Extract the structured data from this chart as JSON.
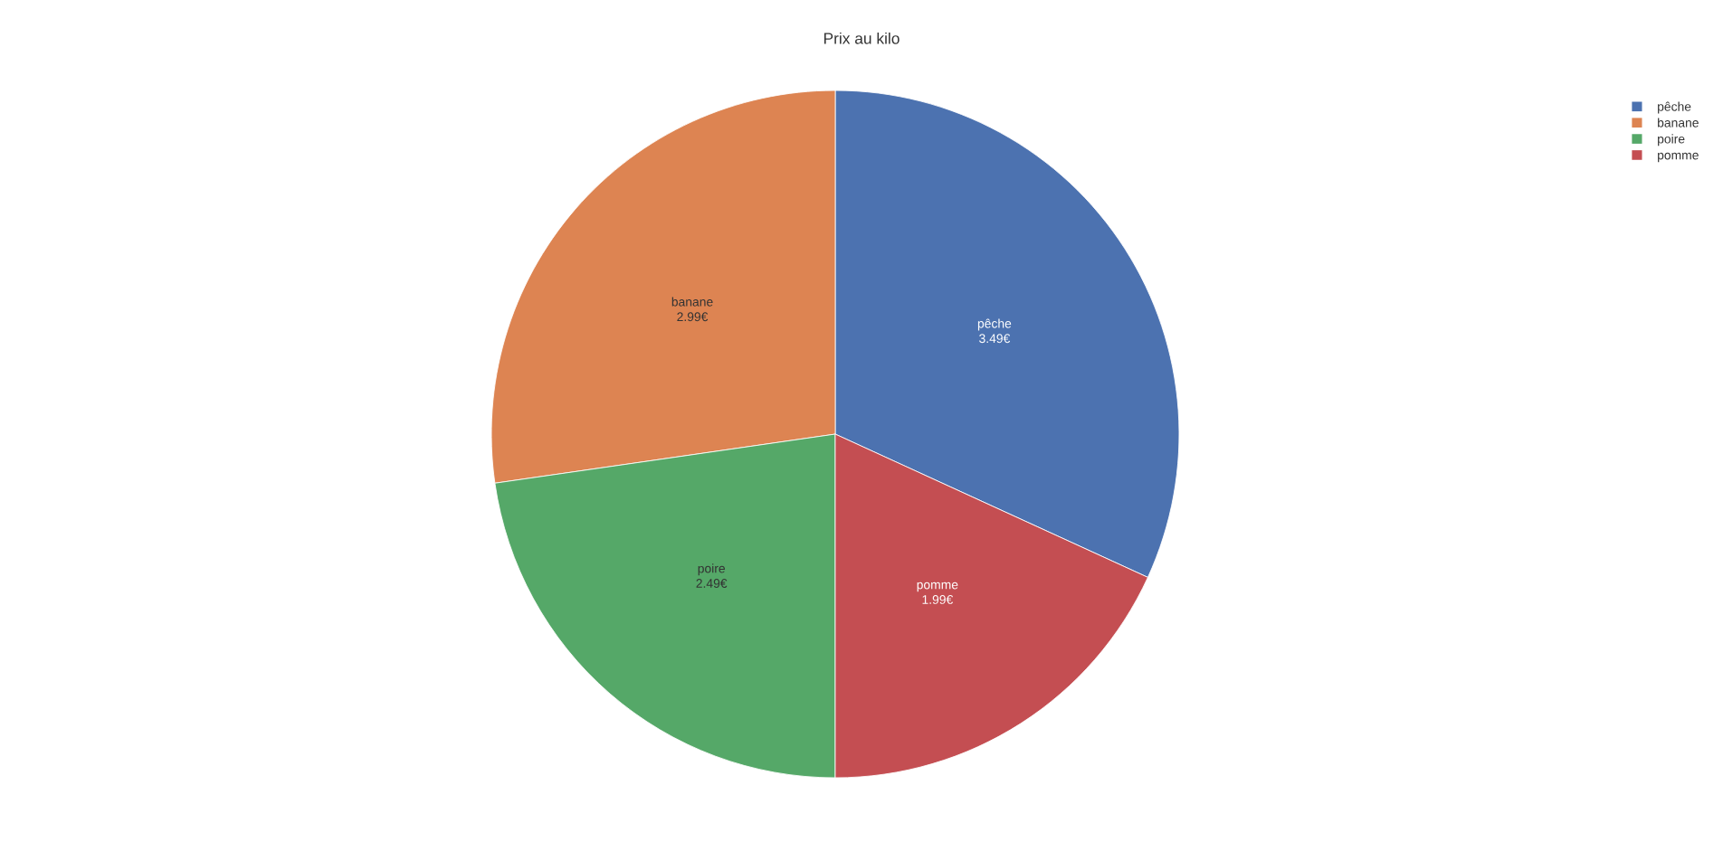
{
  "chart_data": {
    "type": "pie",
    "title": "Prix au kilo",
    "categories": [
      "pêche",
      "banane",
      "poire",
      "pomme"
    ],
    "values": [
      3.49,
      2.99,
      2.49,
      1.99
    ],
    "colors": [
      "#4c72b0",
      "#dd8452",
      "#55a868",
      "#c44e52"
    ],
    "value_labels": [
      "3.49€",
      "2.99€",
      "2.49€",
      "1.99€"
    ],
    "legend": "top right"
  }
}
